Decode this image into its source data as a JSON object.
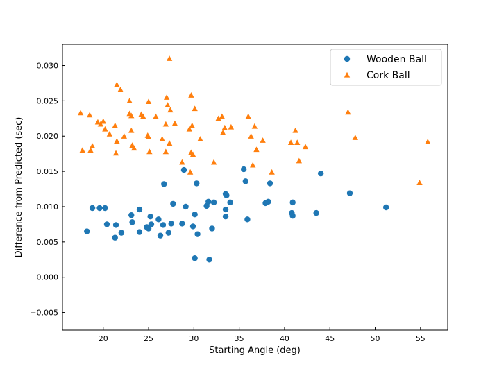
{
  "chart_data": {
    "type": "scatter",
    "xlabel": "Starting Angle (deg)",
    "ylabel": "Difference from Predicted (sec)",
    "xlim": [
      15.5,
      58.0
    ],
    "ylim": [
      -0.0075,
      0.033
    ],
    "xticks": [
      20,
      25,
      30,
      35,
      40,
      45,
      50,
      55
    ],
    "yticks": [
      -0.005,
      0.0,
      0.005,
      0.01,
      0.015,
      0.02,
      0.025,
      0.03
    ],
    "xtick_labels": [
      "20",
      "25",
      "30",
      "35",
      "40",
      "45",
      "50",
      "55"
    ],
    "ytick_labels": [
      "−0.005",
      "0.000",
      "0.005",
      "0.010",
      "0.015",
      "0.020",
      "0.025",
      "0.030"
    ],
    "grid": false,
    "legend_position": "top-right",
    "series": [
      {
        "name": "Wooden Ball",
        "marker": "circle",
        "color": "#1f77b4",
        "points": [
          [
            18.2,
            0.0065
          ],
          [
            18.8,
            0.0098
          ],
          [
            19.6,
            0.0098
          ],
          [
            20.2,
            0.0098
          ],
          [
            20.4,
            0.0075
          ],
          [
            21.3,
            0.0056
          ],
          [
            21.4,
            0.0074
          ],
          [
            22.0,
            0.0063
          ],
          [
            23.1,
            0.0088
          ],
          [
            23.2,
            0.0078
          ],
          [
            24.0,
            0.0064
          ],
          [
            24.0,
            0.0096
          ],
          [
            24.8,
            0.0071
          ],
          [
            25.0,
            0.0069
          ],
          [
            25.2,
            0.0086
          ],
          [
            25.3,
            0.0075
          ],
          [
            26.1,
            0.0082
          ],
          [
            26.3,
            0.0059
          ],
          [
            26.6,
            0.0074
          ],
          [
            26.7,
            0.0132
          ],
          [
            27.2,
            0.0063
          ],
          [
            27.5,
            0.0076
          ],
          [
            27.7,
            0.0104
          ],
          [
            28.7,
            0.0076
          ],
          [
            28.9,
            0.0152
          ],
          [
            29.1,
            0.01
          ],
          [
            29.9,
            0.0072
          ],
          [
            30.1,
            0.0089
          ],
          [
            30.3,
            0.0133
          ],
          [
            30.4,
            0.0061
          ],
          [
            30.1,
            0.0027
          ],
          [
            31.4,
            0.0101
          ],
          [
            31.6,
            0.0107
          ],
          [
            31.7,
            0.0025
          ],
          [
            32.0,
            0.0069
          ],
          [
            32.2,
            0.0106
          ],
          [
            33.5,
            0.0118
          ],
          [
            33.6,
            0.0116
          ],
          [
            33.5,
            0.0096
          ],
          [
            33.5,
            0.0086
          ],
          [
            34.0,
            0.0106
          ],
          [
            35.5,
            0.0153
          ],
          [
            35.7,
            0.0136
          ],
          [
            35.9,
            0.0082
          ],
          [
            37.9,
            0.0105
          ],
          [
            38.2,
            0.0107
          ],
          [
            38.4,
            0.0133
          ],
          [
            40.8,
            0.0091
          ],
          [
            40.9,
            0.0087
          ],
          [
            40.9,
            0.0106
          ],
          [
            43.5,
            0.0091
          ],
          [
            44.0,
            0.0147
          ],
          [
            47.2,
            0.0119
          ],
          [
            51.2,
            0.0099
          ]
        ]
      },
      {
        "name": "Cork Ball",
        "marker": "triangle",
        "color": "#ff7f0e",
        "points": [
          [
            17.5,
            0.0233
          ],
          [
            17.7,
            0.018
          ],
          [
            18.5,
            0.023
          ],
          [
            18.6,
            0.018
          ],
          [
            18.8,
            0.0186
          ],
          [
            19.4,
            0.022
          ],
          [
            19.7,
            0.0217
          ],
          [
            20.0,
            0.0221
          ],
          [
            20.2,
            0.021
          ],
          [
            20.7,
            0.0203
          ],
          [
            21.3,
            0.0215
          ],
          [
            21.4,
            0.0176
          ],
          [
            21.5,
            0.0193
          ],
          [
            21.5,
            0.0273
          ],
          [
            21.9,
            0.0266
          ],
          [
            22.3,
            0.02
          ],
          [
            22.9,
            0.025
          ],
          [
            22.9,
            0.0232
          ],
          [
            23.1,
            0.0229
          ],
          [
            23.1,
            0.0208
          ],
          [
            23.2,
            0.0187
          ],
          [
            23.4,
            0.0183
          ],
          [
            24.2,
            0.0231
          ],
          [
            24.4,
            0.0228
          ],
          [
            24.9,
            0.0201
          ],
          [
            25.0,
            0.0199
          ],
          [
            25.0,
            0.0249
          ],
          [
            25.1,
            0.0178
          ],
          [
            25.8,
            0.0228
          ],
          [
            26.5,
            0.0196
          ],
          [
            26.9,
            0.0217
          ],
          [
            26.9,
            0.0178
          ],
          [
            27.0,
            0.0255
          ],
          [
            27.1,
            0.0244
          ],
          [
            27.3,
            0.019
          ],
          [
            27.4,
            0.0237
          ],
          [
            27.3,
            0.031
          ],
          [
            27.9,
            0.0218
          ],
          [
            28.7,
            0.0163
          ],
          [
            29.5,
            0.021
          ],
          [
            29.6,
            0.0149
          ],
          [
            29.7,
            0.0177
          ],
          [
            29.7,
            0.0258
          ],
          [
            29.8,
            0.0215
          ],
          [
            29.9,
            0.0174
          ],
          [
            30.1,
            0.0239
          ],
          [
            30.7,
            0.0196
          ],
          [
            32.2,
            0.0163
          ],
          [
            32.7,
            0.0225
          ],
          [
            33.1,
            0.0228
          ],
          [
            33.2,
            0.0205
          ],
          [
            33.4,
            0.0212
          ],
          [
            34.1,
            0.0213
          ],
          [
            36.0,
            0.0228
          ],
          [
            36.3,
            0.02
          ],
          [
            36.5,
            0.0159
          ],
          [
            36.7,
            0.0214
          ],
          [
            36.9,
            0.0181
          ],
          [
            37.6,
            0.0194
          ],
          [
            38.6,
            0.0149
          ],
          [
            40.7,
            0.0191
          ],
          [
            41.2,
            0.0208
          ],
          [
            41.4,
            0.0191
          ],
          [
            41.6,
            0.0165
          ],
          [
            42.3,
            0.0185
          ],
          [
            47.0,
            0.0234
          ],
          [
            47.8,
            0.0198
          ],
          [
            54.9,
            0.0134
          ],
          [
            55.8,
            0.0192
          ]
        ]
      }
    ]
  }
}
